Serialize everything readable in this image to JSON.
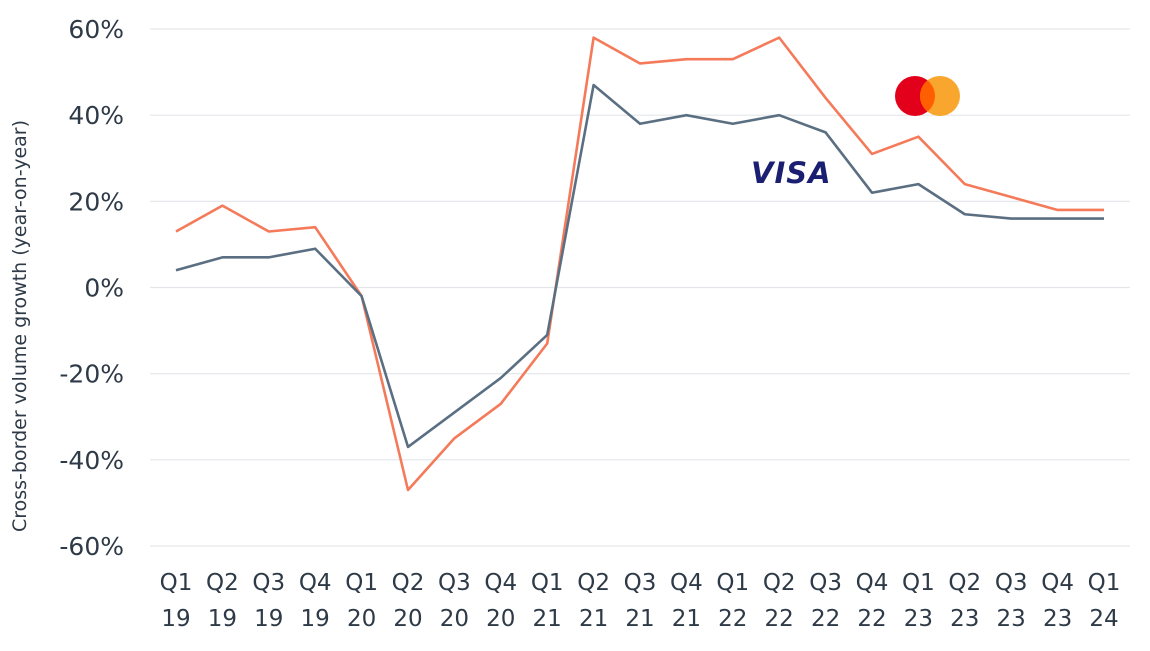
{
  "chart_data": {
    "type": "line",
    "title": "",
    "ylabel": "Cross-border volume growth (year-on-year)",
    "xlabel": "",
    "ylim": [
      -60,
      60
    ],
    "yticks": [
      60,
      40,
      20,
      0,
      -20,
      -40,
      -60
    ],
    "ytick_labels": [
      "60%",
      "40%",
      "20%",
      "0%",
      "-20%",
      "-40%",
      "-60%"
    ],
    "categories": [
      [
        "Q1",
        "19"
      ],
      [
        "Q2",
        "19"
      ],
      [
        "Q3",
        "19"
      ],
      [
        "Q4",
        "19"
      ],
      [
        "Q1",
        "20"
      ],
      [
        "Q2",
        "20"
      ],
      [
        "Q3",
        "20"
      ],
      [
        "Q4",
        "20"
      ],
      [
        "Q1",
        "21"
      ],
      [
        "Q2",
        "21"
      ],
      [
        "Q3",
        "21"
      ],
      [
        "Q4",
        "21"
      ],
      [
        "Q1",
        "22"
      ],
      [
        "Q2",
        "22"
      ],
      [
        "Q3",
        "22"
      ],
      [
        "Q4",
        "22"
      ],
      [
        "Q1",
        "23"
      ],
      [
        "Q2",
        "23"
      ],
      [
        "Q3",
        "23"
      ],
      [
        "Q4",
        "23"
      ],
      [
        "Q1",
        "24"
      ]
    ],
    "grid": true,
    "legend": "logos near lines",
    "series": [
      {
        "logo": "mastercard-logo",
        "color": "#f47a5a",
        "values": [
          13,
          19,
          13,
          14,
          -2,
          -47,
          -35,
          -27,
          -13,
          58,
          52,
          53,
          53,
          58,
          44,
          31,
          35,
          24,
          21,
          18,
          18
        ]
      },
      {
        "logo": "visa-logo",
        "logo_text": "VISA",
        "color": "#5b6f82",
        "values": [
          4,
          7,
          7,
          9,
          -2,
          -37,
          -29,
          -21,
          -11,
          47,
          38,
          40,
          38,
          40,
          36,
          22,
          24,
          17,
          16,
          16,
          16
        ]
      }
    ],
    "colors": {
      "mastercard_red": "#e3001b",
      "mastercard_orange": "#f79e1b",
      "visa_blue": "#1a1f71"
    }
  }
}
